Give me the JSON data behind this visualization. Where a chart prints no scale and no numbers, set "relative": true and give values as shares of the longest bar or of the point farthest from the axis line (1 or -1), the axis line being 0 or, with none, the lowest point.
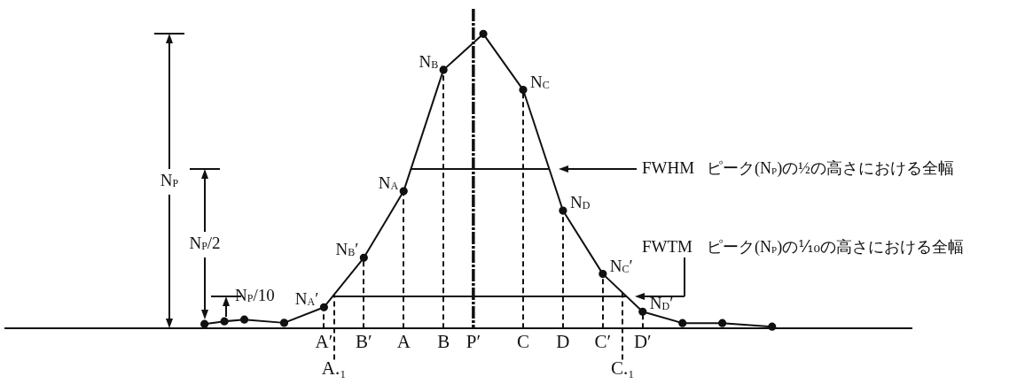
{
  "chart_data": {
    "type": "line",
    "relative": true,
    "categories": [
      null,
      null,
      null,
      null,
      null,
      null,
      null,
      null,
      null,
      null,
      null,
      null,
      "A′",
      "A.₁",
      null,
      null,
      "B′",
      null,
      null,
      null,
      "A",
      null,
      null,
      null,
      "B",
      null,
      null,
      "P′",
      null,
      null,
      null,
      null,
      "C",
      null,
      null,
      null,
      "D",
      null,
      null,
      null,
      "C′",
      null,
      "C.₁",
      null,
      "D′",
      null,
      null,
      null,
      null,
      null,
      null,
      null,
      null,
      null,
      null,
      null,
      null,
      null
    ],
    "series": [
      {
        "color": "#111111",
        "marker": "circle",
        "values": [
          0.015,
          null,
          0.024,
          null,
          0.03,
          null,
          null,
          null,
          0.019,
          null,
          null,
          null,
          0.072,
          null,
          null,
          null,
          0.24,
          null,
          null,
          null,
          0.466,
          null,
          null,
          null,
          0.878,
          null,
          null,
          null,
          1,
          null,
          null,
          null,
          0.81,
          null,
          null,
          null,
          0.4,
          null,
          null,
          null,
          0.185,
          null,
          null,
          null,
          0.057,
          null,
          null,
          null,
          0.018,
          null,
          null,
          null,
          0.018,
          null,
          null,
          null,
          null,
          0.006
        ]
      },
      {
        "type": "lollipop",
        "color": "#111111",
        "marker": "circle",
        "line_style": "dashed",
        "values": [
          null,
          null,
          null,
          null,
          null,
          null,
          null,
          null,
          null,
          null,
          null,
          null,
          0.072,
          null,
          null,
          null,
          0.24,
          null,
          null,
          null,
          0.466,
          null,
          null,
          null,
          0.878,
          null,
          null,
          null,
          null,
          null,
          null,
          null,
          0.81,
          null,
          null,
          null,
          0.4,
          null,
          null,
          null,
          0.185,
          null,
          null,
          null,
          0.057,
          null,
          null,
          null,
          null,
          null,
          null,
          null,
          null,
          null,
          null,
          null,
          null,
          null
        ]
      }
    ],
    "ref_lines": [
      {
        "axis": "x",
        "value": "P′",
        "line_style": "dashed"
      },
      {
        "axis": "y",
        "value": 0.54,
        "label": "FWHM"
      },
      {
        "axis": "y",
        "value": 0.11,
        "label": "FWTM"
      }
    ],
    "annotations": [
      {
        "text": "N$_{A}$′",
        "x": "A′",
        "y": 0.072
      },
      {
        "text": "N$_{B}$′",
        "x": "B′",
        "y": 0.24
      },
      {
        "text": "N$_{A}$",
        "x": "A",
        "y": 0.466
      },
      {
        "text": "N$_{B}$",
        "x": "B",
        "y": 0.878
      },
      {
        "text": "N$_{C}$",
        "x": "C",
        "y": 0.81
      },
      {
        "text": "N$_{D}$",
        "x": "D",
        "y": 0.4
      },
      {
        "text": "N$_{C}$′",
        "x": "C′",
        "y": 0.185
      },
      {
        "text": "N$_{D}$′",
        "x": "D′",
        "y": 0.057
      },
      "N$_{P}$",
      "N$_{P}$/2",
      "N$_{P}$/10",
      "ピーク(N$_{P}$)の½の高さにおける全幅",
      "ピーク(N$_{P}$)の⅒の高さにおける全幅"
    ]
  }
}
